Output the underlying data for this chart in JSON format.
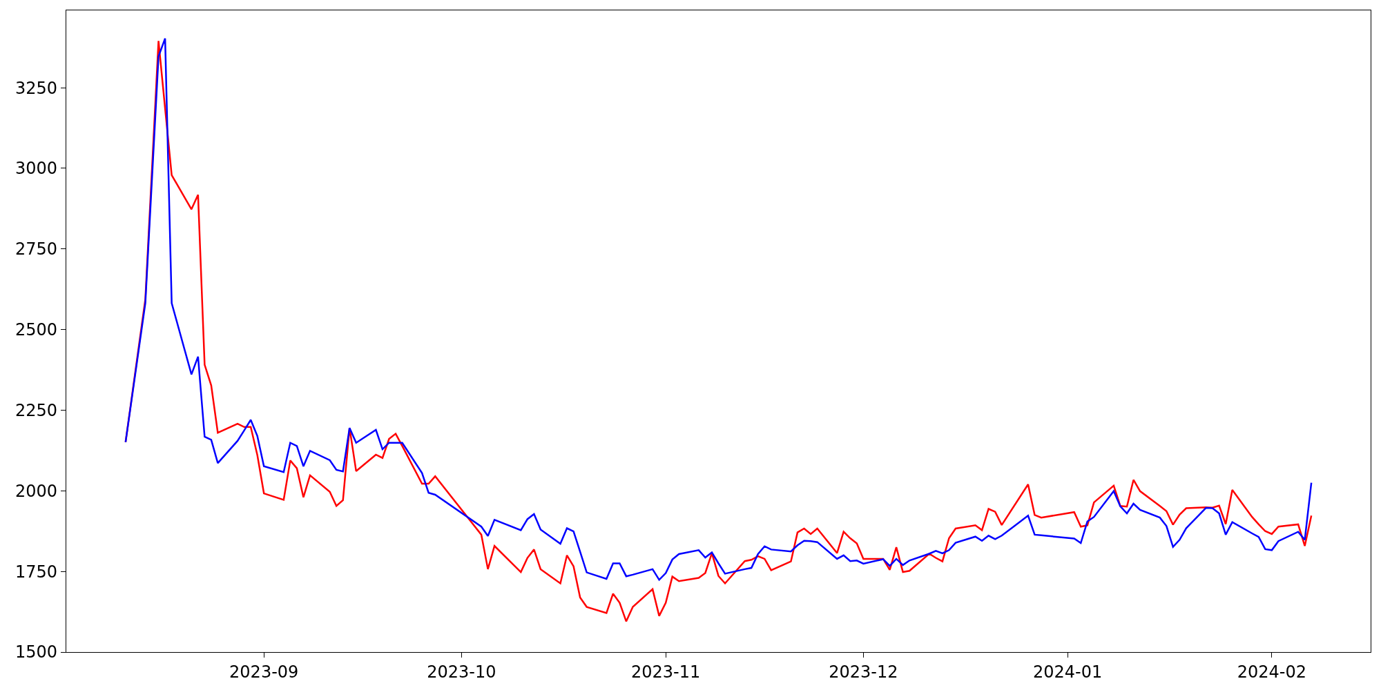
{
  "chart_data": {
    "type": "line",
    "x": [
      "2023-08-11",
      "2023-08-14",
      "2023-08-16",
      "2023-08-17",
      "2023-08-18",
      "2023-08-21",
      "2023-08-22",
      "2023-08-23",
      "2023-08-24",
      "2023-08-25",
      "2023-08-28",
      "2023-08-29",
      "2023-08-30",
      "2023-08-31",
      "2023-09-01",
      "2023-09-04",
      "2023-09-05",
      "2023-09-06",
      "2023-09-07",
      "2023-09-08",
      "2023-09-11",
      "2023-09-12",
      "2023-09-13",
      "2023-09-14",
      "2023-09-15",
      "2023-09-18",
      "2023-09-19",
      "2023-09-20",
      "2023-09-21",
      "2023-09-22",
      "2023-09-25",
      "2023-09-26",
      "2023-09-27",
      "2023-10-04",
      "2023-10-05",
      "2023-10-06",
      "2023-10-10",
      "2023-10-11",
      "2023-10-12",
      "2023-10-13",
      "2023-10-16",
      "2023-10-17",
      "2023-10-18",
      "2023-10-19",
      "2023-10-20",
      "2023-10-23",
      "2023-10-24",
      "2023-10-25",
      "2023-10-26",
      "2023-10-27",
      "2023-10-30",
      "2023-10-31",
      "2023-11-01",
      "2023-11-02",
      "2023-11-03",
      "2023-11-06",
      "2023-11-07",
      "2023-11-08",
      "2023-11-09",
      "2023-11-10",
      "2023-11-13",
      "2023-11-14",
      "2023-11-15",
      "2023-11-16",
      "2023-11-17",
      "2023-11-20",
      "2023-11-21",
      "2023-11-22",
      "2023-11-23",
      "2023-11-24",
      "2023-11-27",
      "2023-11-28",
      "2023-11-29",
      "2023-11-30",
      "2023-12-01",
      "2023-12-04",
      "2023-12-05",
      "2023-12-06",
      "2023-12-07",
      "2023-12-08",
      "2023-12-11",
      "2023-12-12",
      "2023-12-13",
      "2023-12-14",
      "2023-12-15",
      "2023-12-18",
      "2023-12-19",
      "2023-12-20",
      "2023-12-21",
      "2023-12-22",
      "2023-12-26",
      "2023-12-27",
      "2023-12-28",
      "2024-01-02",
      "2024-01-03",
      "2024-01-04",
      "2024-01-05",
      "2024-01-08",
      "2024-01-09",
      "2024-01-10",
      "2024-01-11",
      "2024-01-12",
      "2024-01-15",
      "2024-01-16",
      "2024-01-17",
      "2024-01-18",
      "2024-01-19",
      "2024-01-22",
      "2024-01-23",
      "2024-01-24",
      "2024-01-25",
      "2024-01-26",
      "2024-01-29",
      "2024-01-30",
      "2024-01-31",
      "2024-02-01",
      "2024-02-02",
      "2024-02-05",
      "2024-02-06",
      "2024-02-07"
    ],
    "series": [
      {
        "color": "#ff0000",
        "values": [
          2151,
          2594,
          3395,
          3186,
          2979,
          2873,
          2918,
          2391,
          2327,
          2180,
          2208,
          2198,
          2198,
          2111,
          1992,
          1972,
          2094,
          2070,
          1980,
          2048,
          1997,
          1953,
          1971,
          2195,
          2061,
          2112,
          2102,
          2161,
          2177,
          2139,
          2022,
          2022,
          2045,
          1864,
          1757,
          1829,
          1748,
          1792,
          1818,
          1757,
          1713,
          1800,
          1766,
          1669,
          1640,
          1621,
          1681,
          1653,
          1595,
          1640,
          1695,
          1612,
          1653,
          1734,
          1720,
          1730,
          1745,
          1807,
          1736,
          1713,
          1782,
          1786,
          1797,
          1789,
          1754,
          1781,
          1871,
          1883,
          1866,
          1883,
          1807,
          1873,
          1853,
          1837,
          1789,
          1789,
          1755,
          1825,
          1748,
          1752,
          1805,
          1792,
          1781,
          1853,
          1883,
          1893,
          1878,
          1944,
          1935,
          1894,
          2020,
          1925,
          1917,
          1934,
          1889,
          1893,
          1964,
          2016,
          1953,
          1951,
          2034,
          1999,
          1953,
          1937,
          1895,
          1926,
          1946,
          1949,
          1948,
          1954,
          1897,
          2003,
          1919,
          1896,
          1875,
          1866,
          1889,
          1896,
          1829,
          1923
        ]
      },
      {
        "color": "#0000ff",
        "values": [
          2151,
          2582,
          3347,
          3403,
          2582,
          2361,
          2416,
          2168,
          2158,
          2086,
          2155,
          2187,
          2220,
          2170,
          2076,
          2058,
          2149,
          2139,
          2076,
          2124,
          2095,
          2065,
          2060,
          2195,
          2149,
          2189,
          2129,
          2149,
          2149,
          2149,
          2055,
          1994,
          1988,
          1889,
          1860,
          1910,
          1878,
          1912,
          1928,
          1880,
          1836,
          1884,
          1874,
          1811,
          1747,
          1727,
          1775,
          1775,
          1735,
          1740,
          1757,
          1724,
          1745,
          1787,
          1804,
          1816,
          1793,
          1809,
          1775,
          1743,
          1757,
          1761,
          1804,
          1828,
          1818,
          1812,
          1831,
          1845,
          1844,
          1841,
          1789,
          1800,
          1782,
          1784,
          1774,
          1788,
          1767,
          1789,
          1770,
          1784,
          1805,
          1814,
          1806,
          1816,
          1839,
          1858,
          1845,
          1861,
          1850,
          1861,
          1923,
          1864,
          1862,
          1852,
          1838,
          1905,
          1919,
          1999,
          1952,
          1930,
          1960,
          1941,
          1917,
          1891,
          1826,
          1848,
          1884,
          1947,
          1946,
          1930,
          1864,
          1903,
          1868,
          1857,
          1819,
          1816,
          1844,
          1873,
          1848,
          2025
        ]
      }
    ],
    "xlim": [
      "2023-08-02",
      "2024-02-16"
    ],
    "xticks": [
      {
        "value": "2023-09-01",
        "label": "2023-09"
      },
      {
        "value": "2023-10-01",
        "label": "2023-10"
      },
      {
        "value": "2023-11-01",
        "label": "2023-11"
      },
      {
        "value": "2023-12-01",
        "label": "2023-12"
      },
      {
        "value": "2024-01-01",
        "label": "2024-01"
      },
      {
        "value": "2024-02-01",
        "label": "2024-02"
      }
    ],
    "ylim": [
      1500,
      3490
    ],
    "yticks": [
      1500,
      1750,
      2000,
      2250,
      2500,
      2750,
      3000,
      3250
    ]
  }
}
